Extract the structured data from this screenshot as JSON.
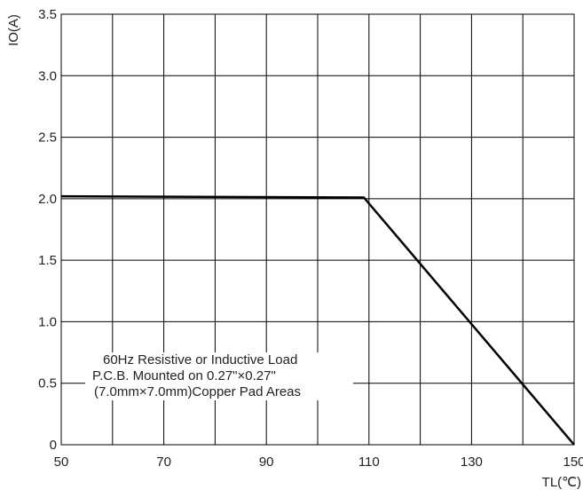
{
  "chart_data": {
    "type": "line",
    "title": "",
    "xlabel": "TL(℃)",
    "ylabel": "IO(A)",
    "xlim": [
      50,
      150
    ],
    "ylim": [
      0,
      3.5
    ],
    "x_ticks": [
      50,
      70,
      90,
      110,
      130,
      150
    ],
    "x_tick_labels": [
      "50",
      "70",
      "90",
      "110",
      "130",
      "150"
    ],
    "x_grid_step": 10,
    "y_ticks": [
      0,
      0.5,
      1.0,
      1.5,
      2.0,
      2.5,
      3.0,
      3.5
    ],
    "y_tick_labels": [
      "0",
      "0.5",
      "1.0",
      "1.5",
      "2.0",
      "2.5",
      "3.0",
      "3.5"
    ],
    "grid": true,
    "series": [
      {
        "x": [
          50,
          109,
          150
        ],
        "y": [
          2.02,
          2.01,
          0
        ],
        "color": "#000000"
      }
    ],
    "annotation": {
      "lines": [
        "60Hz Resistive or Inductive Load",
        "P.C.B. Mounted on 0.27\"×0.27\"",
        "(7.0mm×7.0mm)Copper Pad Areas"
      ]
    }
  }
}
